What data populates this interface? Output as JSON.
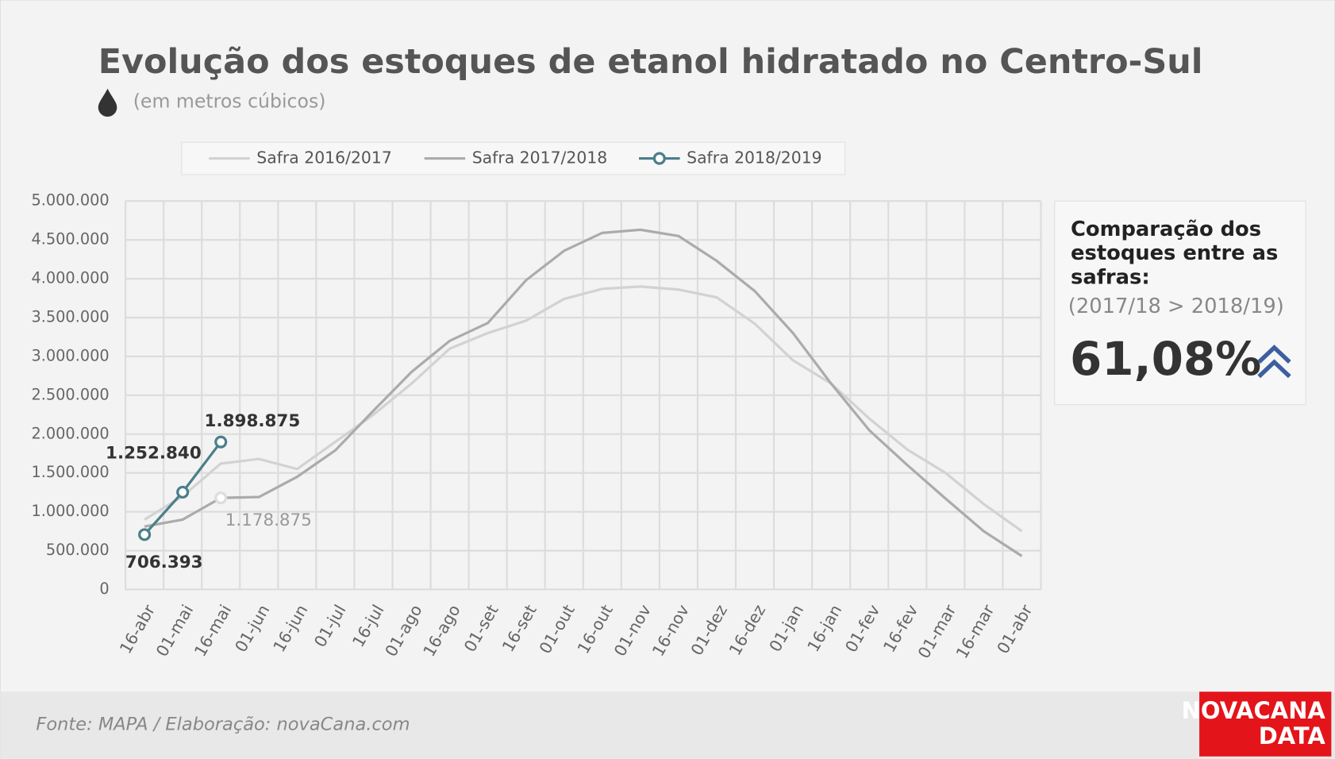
{
  "chart_data": {
    "type": "line",
    "title": "Evolução dos estoques de etanol hidratado no Centro-Sul",
    "subtitle": "(em metros cúbicos)",
    "categories": [
      "16-abr",
      "01-mai",
      "16-mai",
      "01-jun",
      "16-jun",
      "01-jul",
      "16-jul",
      "01-ago",
      "16-ago",
      "01-set",
      "16-set",
      "01-out",
      "16-out",
      "01-nov",
      "16-nov",
      "01-dez",
      "16-dez",
      "01-jan",
      "16-jan",
      "01-fev",
      "16-fev",
      "01-mar",
      "16-mar",
      "01-abr"
    ],
    "series": [
      {
        "name": "Safra 2016/2017",
        "color": "#d2d2d2",
        "values": [
          900000,
          1200000,
          1620000,
          1680000,
          1550000,
          1900000,
          2250000,
          2650000,
          3100000,
          3300000,
          3460000,
          3740000,
          3870000,
          3900000,
          3860000,
          3760000,
          3420000,
          2950000,
          2650000,
          2200000,
          1800000,
          1500000,
          1100000,
          750000
        ]
      },
      {
        "name": "Safra 2017/2018",
        "color": "#ababab",
        "values": [
          810000,
          900000,
          1178875,
          1190000,
          1450000,
          1790000,
          2300000,
          2800000,
          3200000,
          3430000,
          3980000,
          4360000,
          4590000,
          4630000,
          4550000,
          4230000,
          3840000,
          3300000,
          2650000,
          2050000,
          1600000,
          1170000,
          750000,
          430000
        ],
        "value_labels": [
          null,
          null,
          "1.178.875",
          null,
          null,
          null,
          null,
          null,
          null,
          null,
          null,
          null,
          null,
          null,
          null,
          null,
          null,
          null,
          null,
          null,
          null,
          null,
          null,
          null
        ]
      },
      {
        "name": "Safra 2018/2019",
        "color": "#4a7f8a",
        "values": [
          706393,
          1252840,
          1898875,
          null,
          null,
          null,
          null,
          null,
          null,
          null,
          null,
          null,
          null,
          null,
          null,
          null,
          null,
          null,
          null,
          null,
          null,
          null,
          null,
          null
        ],
        "value_labels": [
          "706.393",
          "1.252.840",
          "1.898.875",
          null,
          null,
          null,
          null,
          null,
          null,
          null,
          null,
          null,
          null,
          null,
          null,
          null,
          null,
          null,
          null,
          null,
          null,
          null,
          null,
          null
        ]
      }
    ],
    "ylim": [
      0,
      5000000
    ],
    "yticks": [
      0,
      {
        "value": 500000,
        "label": "500.000"
      },
      {
        "value": 1000000,
        "label": "1.000.000"
      },
      {
        "value": 1500000,
        "label": "1.500.000"
      },
      {
        "value": 2000000,
        "label": "2.000.000"
      },
      {
        "value": 2500000,
        "label": "2.500.000"
      },
      {
        "value": 3000000,
        "label": "3.000.000"
      },
      {
        "value": 3500000,
        "label": "3.500.000"
      },
      {
        "value": 4000000,
        "label": "4.000.000"
      },
      {
        "value": 4500000,
        "label": "4.500.000"
      },
      {
        "value": 5000000,
        "label": "5.000.000"
      }
    ],
    "grid": true,
    "legend": "top"
  },
  "panel": {
    "heading": [
      "Comparação dos",
      "estoques entre as",
      "safras:"
    ],
    "note": "(2017/18 > 2018/19)",
    "value": "61,08%"
  },
  "footer": {
    "source": "Fonte: MAPA  / Elaboração: novaCana.com",
    "logo": [
      "NOVACANA",
      "DATA"
    ]
  }
}
